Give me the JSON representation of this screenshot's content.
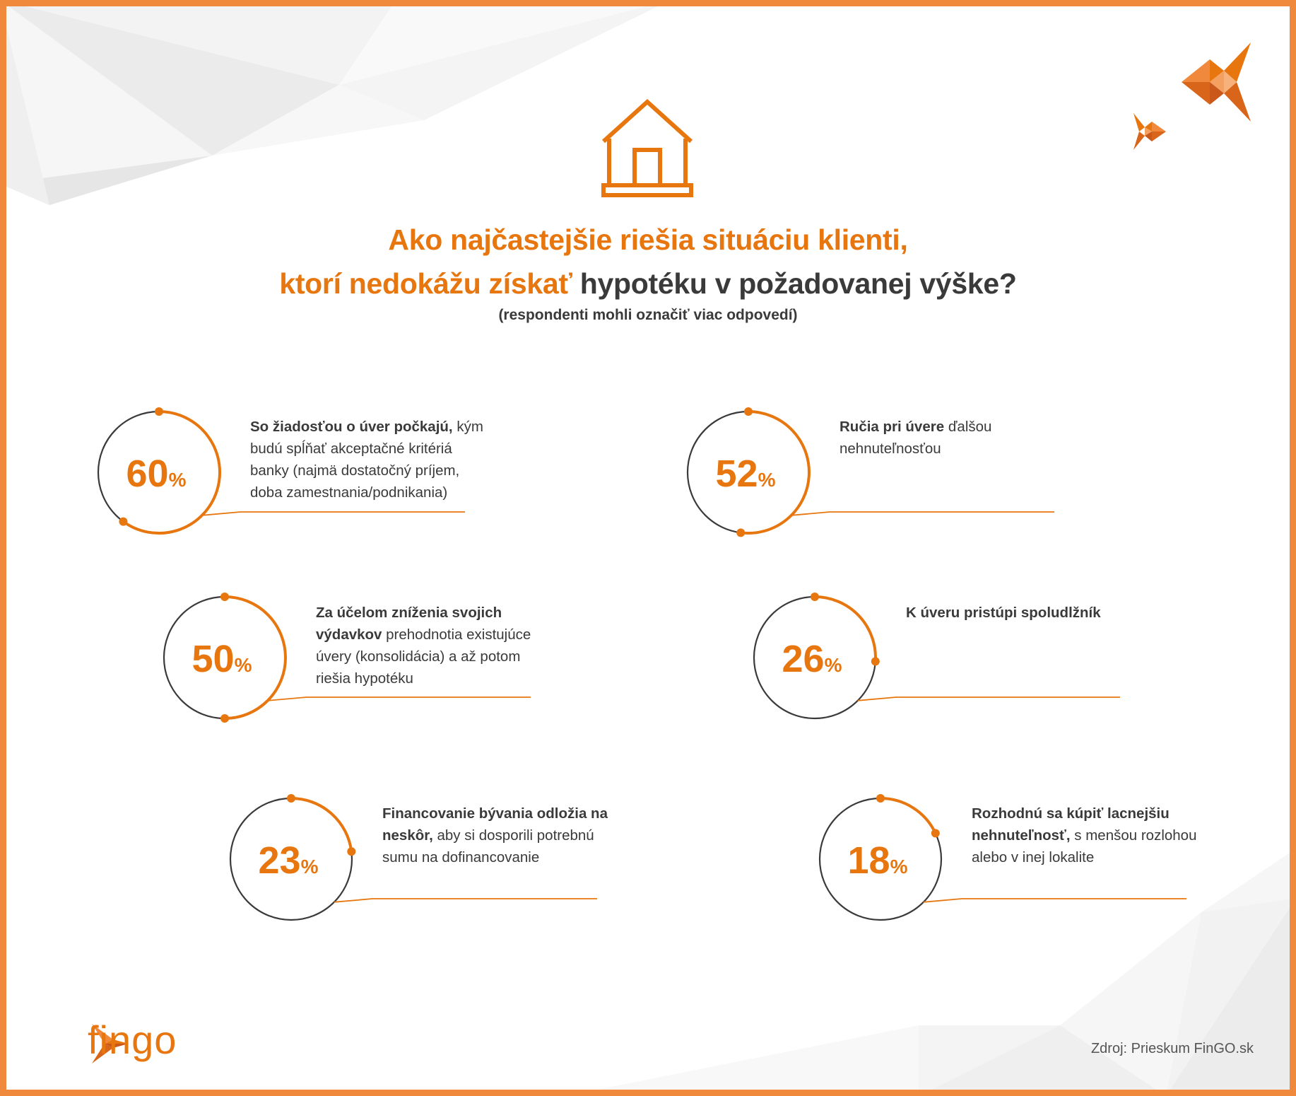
{
  "title": {
    "line1": "Ako najčastejšie riešia situáciu klienti,",
    "line2_orange": "ktorí nedokážu získať",
    "line2_dark": " hypotéku v požadovanej výške?",
    "subtitle": "(respondenti mohli označiť viac odpovedí)"
  },
  "chart_data": {
    "type": "radial-progress",
    "title": "Ako najčastejšie riešia situáciu klienti, ktorí nedokážu získať hypotéku v požadovanej výške?",
    "subtitle": "(respondenti mohli označiť viac odpovedí)",
    "unit": "%",
    "items": [
      {
        "value": 60,
        "label": "60",
        "bold": "So žiadosťou o úver počkajú,",
        "rest": " kým budú spĺňať akceptačné kritériá banky (najmä dostatočný príjem, doba zamestnania/podnikania)"
      },
      {
        "value": 52,
        "label": "52",
        "bold": "Ručia pri úvere",
        "rest": " ďalšou nehnuteľnosťou"
      },
      {
        "value": 50,
        "label": "50",
        "bold": "Za účelom zníženia svojich výdavkov",
        "rest": " prehodnotia existujúce úvery (konsolidácia) a až potom riešia hypotéku"
      },
      {
        "value": 26,
        "label": "26",
        "bold": "K úveru pristúpi spoludlžník",
        "rest": ""
      },
      {
        "value": 23,
        "label": "23",
        "bold": "Financovanie bývania odložia na neskôr,",
        "rest": " aby si dosporili potrebnú sumu na dofinancovanie"
      },
      {
        "value": 18,
        "label": "18",
        "bold": "Rozhodnú sa kúpiť lacnejšiu nehnuteľnosť,",
        "rest": " s menšou rozlohou alebo v inej lokalite"
      }
    ]
  },
  "colors": {
    "accent": "#e8760f",
    "frame": "#f0893c",
    "ring": "#3a3a3a",
    "text": "#3a3a3a"
  },
  "icons": {
    "house": "house-icon",
    "fish": "fish-icon",
    "logo": "fingo-logo"
  },
  "footer": {
    "logo_text": "fingo",
    "source": "Zdroj: Prieskum FinGO.sk"
  }
}
